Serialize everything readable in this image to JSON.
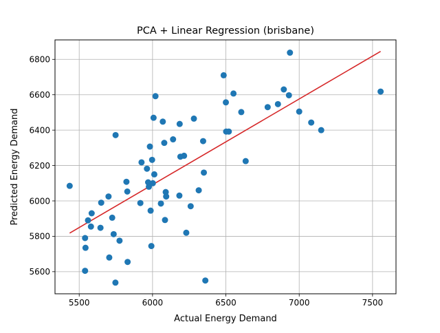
{
  "chart_data": {
    "type": "scatter",
    "title": "PCA + Linear Regression (brisbane)",
    "xlabel": "Actual Energy Demand",
    "ylabel": "Predicted Energy Demand",
    "xlim": [
      5335,
      7660
    ],
    "ylim": [
      5475,
      6910
    ],
    "x_ticks": [
      5500,
      6000,
      6500,
      7000,
      7500
    ],
    "y_ticks": [
      5600,
      5800,
      6000,
      6200,
      6400,
      6600,
      6800
    ],
    "grid": true,
    "point_color": "#1f77b4",
    "line_color": "#d62728",
    "series": [
      {
        "points": [
          [
            5435,
            6085
          ],
          [
            5540,
            5790
          ],
          [
            5543,
            5735
          ],
          [
            5540,
            5605
          ],
          [
            5560,
            5890
          ],
          [
            5580,
            5855
          ],
          [
            5585,
            5930
          ],
          [
            5645,
            5848
          ],
          [
            5650,
            5990
          ],
          [
            5700,
            6025
          ],
          [
            5705,
            5680
          ],
          [
            5725,
            5905
          ],
          [
            5735,
            5812
          ],
          [
            5747,
            5538
          ],
          [
            5748,
            6372
          ],
          [
            5775,
            5775
          ],
          [
            5822,
            6108
          ],
          [
            5828,
            6053
          ],
          [
            5830,
            5655
          ],
          [
            5917,
            5988
          ],
          [
            5925,
            6218
          ],
          [
            5962,
            6182
          ],
          [
            5970,
            6105
          ],
          [
            5975,
            6080
          ],
          [
            5982,
            6307
          ],
          [
            5987,
            5945
          ],
          [
            5992,
            5745
          ],
          [
            5997,
            6232
          ],
          [
            6002,
            6100
          ],
          [
            6007,
            6470
          ],
          [
            6012,
            6150
          ],
          [
            6020,
            6592
          ],
          [
            6057,
            5985
          ],
          [
            6070,
            6448
          ],
          [
            6080,
            6328
          ],
          [
            6085,
            5892
          ],
          [
            6090,
            6050
          ],
          [
            6093,
            6025
          ],
          [
            6140,
            6348
          ],
          [
            6183,
            6030
          ],
          [
            6185,
            6435
          ],
          [
            6190,
            6250
          ],
          [
            6215,
            6255
          ],
          [
            6230,
            5820
          ],
          [
            6260,
            5970
          ],
          [
            6282,
            6465
          ],
          [
            6315,
            6060
          ],
          [
            6345,
            6338
          ],
          [
            6350,
            6160
          ],
          [
            6360,
            5550
          ],
          [
            6485,
            6710
          ],
          [
            6500,
            6557
          ],
          [
            6502,
            6392
          ],
          [
            6520,
            6392
          ],
          [
            6552,
            6607
          ],
          [
            6605,
            6502
          ],
          [
            6635,
            6225
          ],
          [
            6785,
            6530
          ],
          [
            6855,
            6547
          ],
          [
            6895,
            6630
          ],
          [
            6930,
            6597
          ],
          [
            6937,
            6838
          ],
          [
            7000,
            6505
          ],
          [
            7082,
            6443
          ],
          [
            7150,
            6400
          ],
          [
            7555,
            6618
          ]
        ]
      }
    ],
    "fit_line": {
      "x": [
        5435,
        7555
      ],
      "y": [
        5818,
        6845
      ]
    }
  }
}
